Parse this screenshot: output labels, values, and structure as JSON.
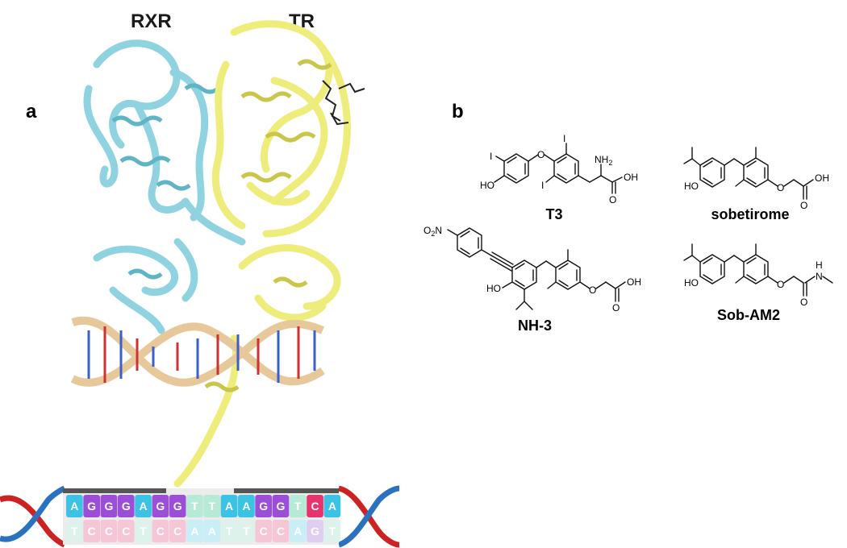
{
  "panels": {
    "a_label": "a",
    "b_label": "b"
  },
  "structure": {
    "rxr_label": "RXR",
    "tr_label": "TR",
    "colors": {
      "rxr": "#8fd3e0",
      "rxr_dark": "#5fb4c6",
      "tr": "#eeec7a",
      "tr_dark": "#c9c64a",
      "dna_backbone": "#e6c89a",
      "ligand": "#222222"
    }
  },
  "compounds": {
    "t3": {
      "name": "T3",
      "atoms": {
        "i1": "I",
        "i2": "I",
        "i3": "I",
        "o": "O",
        "ho": "HO",
        "nh2": "NH",
        "nh2_sub": "2",
        "o_acid": "O",
        "oh": "OH"
      }
    },
    "sobetirome": {
      "name": "sobetirome",
      "atoms": {
        "ho": "HO",
        "o1": "O",
        "o2": "O",
        "oh": "OH"
      }
    },
    "nh3": {
      "name": "NH-3",
      "atoms": {
        "o2n": "O",
        "o2n_sub": "2",
        "o2n_n": "N",
        "ho": "HO",
        "o1": "O",
        "o2": "O",
        "oh": "OH"
      }
    },
    "sob_am2": {
      "name": "Sob-AM2",
      "atoms": {
        "ho": "HO",
        "o1": "O",
        "o2": "O",
        "n": "N",
        "h": "H"
      }
    }
  },
  "dna_sequence": {
    "top": [
      "A",
      "G",
      "G",
      "G",
      "A",
      "G",
      "G",
      "T",
      "T",
      "A",
      "A",
      "G",
      "G",
      "T",
      "C",
      "A"
    ],
    "bottom": [
      "T",
      "C",
      "C",
      "C",
      "T",
      "C",
      "C",
      "A",
      "A",
      "T",
      "T",
      "C",
      "C",
      "A",
      "G",
      "T"
    ],
    "base_colors": {
      "A": "#3cc3e4",
      "G": "#9b4fd8",
      "T": "#b7ead6",
      "C": "#e8336e"
    },
    "bottom_colors": {
      "A": "#c8eef6",
      "G": "#e2cdf2",
      "T": "#dcf2ea",
      "C": "#f7c6d6"
    },
    "strand_colors": {
      "red": "#cc2222",
      "blue": "#2a72c0",
      "teal": "#3cb0c8"
    }
  }
}
